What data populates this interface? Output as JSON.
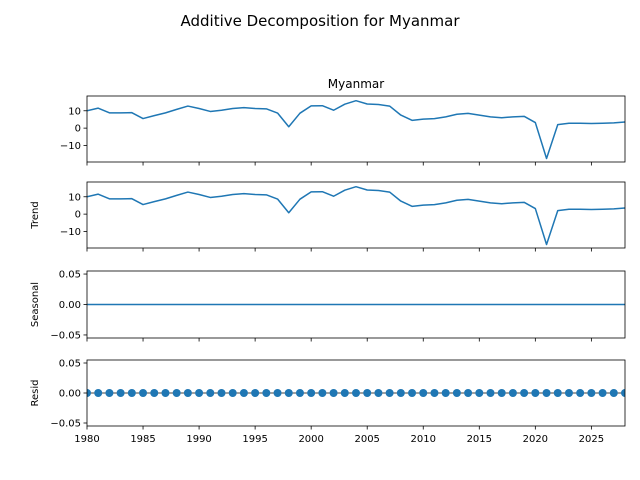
{
  "chart_data": {
    "type": "line",
    "suptitle": "Additive Decomposition for Myanmar",
    "color": "#1f77b4",
    "x": [
      1980,
      1981,
      1982,
      1983,
      1984,
      1985,
      1986,
      1987,
      1988,
      1989,
      1990,
      1991,
      1992,
      1993,
      1994,
      1995,
      1996,
      1997,
      1998,
      1999,
      2000,
      2001,
      2002,
      2003,
      2004,
      2005,
      2006,
      2007,
      2008,
      2009,
      2010,
      2011,
      2012,
      2013,
      2014,
      2015,
      2016,
      2017,
      2018,
      2019,
      2020,
      2021,
      2022,
      2023,
      2024,
      2025,
      2026,
      2027,
      2028
    ],
    "xlim": [
      1980,
      2028
    ],
    "xticks": [
      1980,
      1985,
      1990,
      1995,
      2000,
      2005,
      2010,
      2015,
      2020,
      2025
    ],
    "panels": [
      {
        "title": "Myanmar",
        "ylabel": "",
        "kind": "line",
        "ylim": [
          -19.5,
          18.5
        ],
        "yticks": [
          10,
          0,
          -10
        ],
        "yticklabels": [
          "10",
          "0",
          "−10"
        ],
        "values": [
          10.0,
          11.5,
          8.8,
          8.8,
          8.9,
          5.5,
          7.2,
          8.8,
          10.8,
          12.7,
          11.3,
          9.6,
          10.3,
          11.3,
          11.8,
          11.3,
          11.1,
          8.7,
          0.8,
          8.6,
          12.8,
          12.9,
          10.3,
          13.8,
          15.8,
          13.9,
          13.6,
          12.7,
          7.5,
          4.5,
          5.2,
          5.5,
          6.5,
          8.0,
          8.5,
          7.5,
          6.5,
          6.0,
          6.5,
          6.8,
          3.2,
          -17.5,
          2.0,
          2.8,
          2.8,
          2.7,
          2.8,
          3.0,
          3.5
        ]
      },
      {
        "title": "",
        "ylabel": "Trend",
        "kind": "line",
        "ylim": [
          -19.5,
          18.5
        ],
        "yticks": [
          10,
          0,
          -10
        ],
        "yticklabels": [
          "10",
          "0",
          "−10"
        ],
        "values": [
          10.0,
          11.5,
          8.8,
          8.8,
          8.9,
          5.5,
          7.2,
          8.8,
          10.8,
          12.7,
          11.3,
          9.6,
          10.3,
          11.3,
          11.8,
          11.3,
          11.1,
          8.7,
          0.8,
          8.6,
          12.8,
          12.9,
          10.3,
          13.8,
          15.8,
          13.9,
          13.6,
          12.7,
          7.5,
          4.5,
          5.2,
          5.5,
          6.5,
          8.0,
          8.5,
          7.5,
          6.5,
          6.0,
          6.5,
          6.8,
          3.2,
          -17.5,
          2.0,
          2.8,
          2.8,
          2.7,
          2.8,
          3.0,
          3.5
        ]
      },
      {
        "title": "",
        "ylabel": "Seasonal",
        "kind": "line",
        "ylim": [
          -0.055,
          0.055
        ],
        "yticks": [
          0.05,
          0.0,
          -0.05
        ],
        "yticklabels": [
          "0.05",
          "0.00",
          "−0.05"
        ],
        "values": [
          0,
          0,
          0,
          0,
          0,
          0,
          0,
          0,
          0,
          0,
          0,
          0,
          0,
          0,
          0,
          0,
          0,
          0,
          0,
          0,
          0,
          0,
          0,
          0,
          0,
          0,
          0,
          0,
          0,
          0,
          0,
          0,
          0,
          0,
          0,
          0,
          0,
          0,
          0,
          0,
          0,
          0,
          0,
          0,
          0,
          0,
          0,
          0,
          0
        ]
      },
      {
        "title": "",
        "ylabel": "Resid",
        "kind": "scatter",
        "ylim": [
          -0.055,
          0.055
        ],
        "yticks": [
          0.05,
          0.0,
          -0.05
        ],
        "yticklabels": [
          "0.05",
          "0.00",
          "−0.05"
        ],
        "values": [
          0,
          0,
          0,
          0,
          0,
          0,
          0,
          0,
          0,
          0,
          0,
          0,
          0,
          0,
          0,
          0,
          0,
          0,
          0,
          0,
          0,
          0,
          0,
          0,
          0,
          0,
          0,
          0,
          0,
          0,
          0,
          0,
          0,
          0,
          0,
          0,
          0,
          0,
          0,
          0,
          0,
          0,
          0,
          0,
          0,
          0,
          0,
          0,
          0
        ]
      }
    ]
  }
}
